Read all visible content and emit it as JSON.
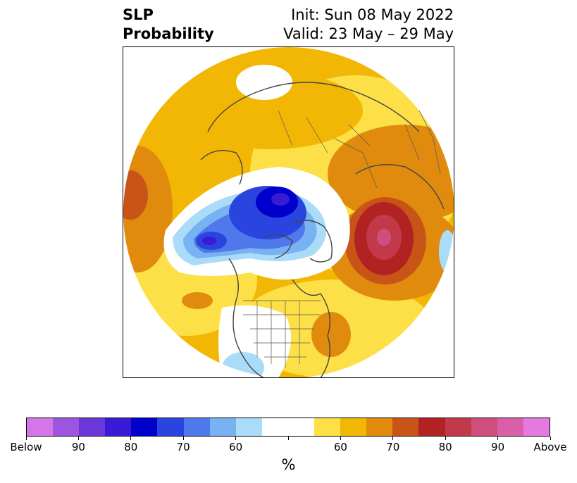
{
  "title": {
    "left_line1": "SLP",
    "left_line2": "Probability",
    "right_line1": "Init: Sun 08 May 2022",
    "right_line2": "Valid: 23 May – 29 May"
  },
  "colorbar": {
    "colors": [
      "#d675e8",
      "#9c55e0",
      "#6a38d8",
      "#3a1ad4",
      "#0000cc",
      "#2a44e0",
      "#4f78ea",
      "#78b2f2",
      "#aadcfa",
      "#ffffff",
      "#ffffff",
      "#fde047",
      "#f2b705",
      "#e08b0e",
      "#c85418",
      "#b22222",
      "#c23a4a",
      "#ce4f7e",
      "#d960a8",
      "#e679e0"
    ],
    "tick_labels": [
      "Below",
      "90",
      "80",
      "70",
      "60",
      "",
      "60",
      "70",
      "80",
      "90",
      "Above"
    ],
    "unit": "%"
  },
  "legend_colors": {
    "below_normal": "#0000cc",
    "near_normal": "#ffffff",
    "above_normal": "#b22222"
  }
}
